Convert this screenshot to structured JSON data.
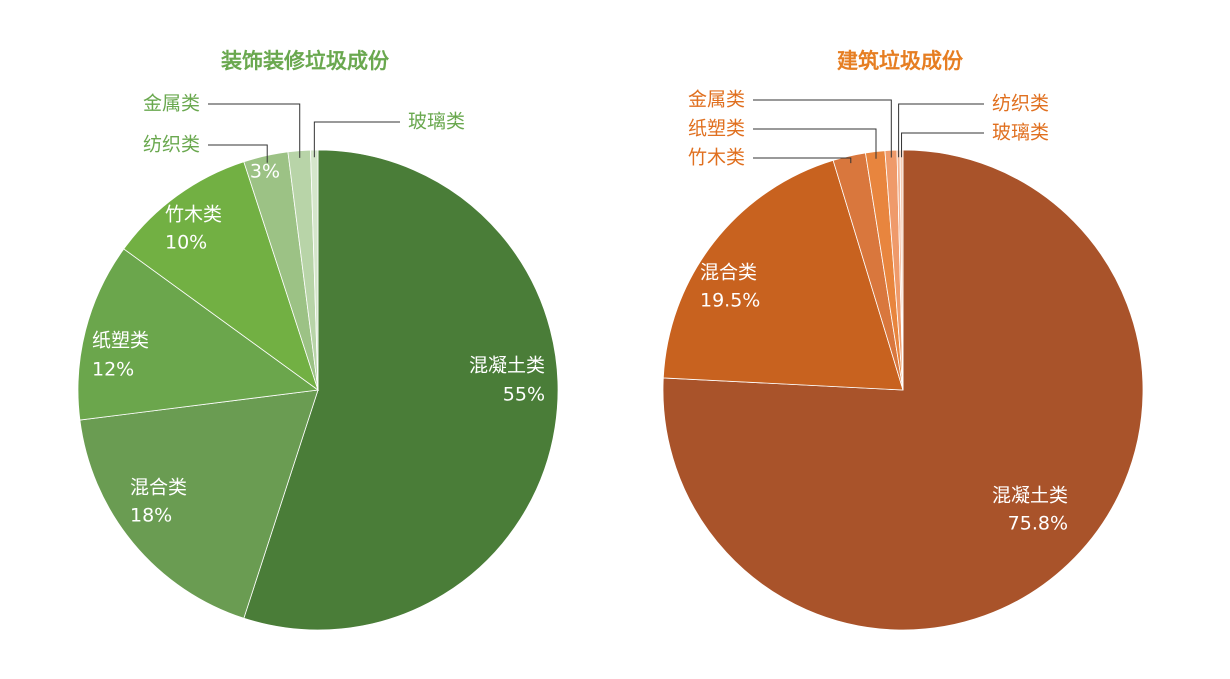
{
  "chart_data": [
    {
      "type": "pie",
      "title": "装饰装修垃圾成份",
      "title_color": "#6aa84f",
      "label_color": "#6aa84f",
      "categories": [
        "混凝土类",
        "混合类",
        "纸塑类",
        "竹木类",
        "纺织类",
        "金属类",
        "玻璃类"
      ],
      "values": [
        55,
        18,
        12,
        10,
        3,
        1.5,
        0.5
      ],
      "value_labels": [
        "55%",
        "18%",
        "12%",
        "10%",
        "3%",
        null,
        null
      ],
      "colors": [
        "#4a7d38",
        "#6a9c52",
        "#6ba64c",
        "#72b043",
        "#9cc285",
        "#b8d4a8",
        "#d5e6cb"
      ]
    },
    {
      "type": "pie",
      "title": "建筑垃圾成份",
      "title_color": "#e67e22",
      "label_color": "#e07020",
      "categories": [
        "混凝土类",
        "混合类",
        "竹木类",
        "纸塑类",
        "金属类",
        "纺织类",
        "玻璃类"
      ],
      "values": [
        75.8,
        19.5,
        2.2,
        1.3,
        0.8,
        0.2,
        0.2
      ],
      "value_labels": [
        "75.8%",
        "19.5%",
        null,
        null,
        null,
        null,
        null
      ],
      "colors": [
        "#a9532a",
        "#c8621f",
        "#d9773d",
        "#e8853e",
        "#ef9a6a",
        "#f3b493",
        "#f6cdb5"
      ]
    }
  ]
}
